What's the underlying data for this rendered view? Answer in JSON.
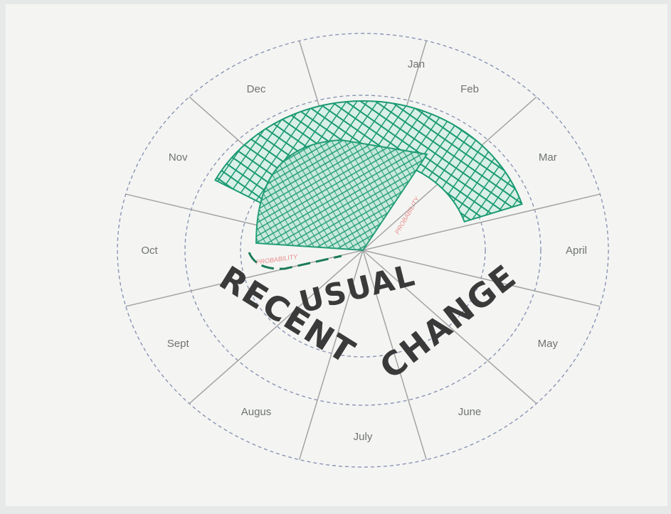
{
  "months": [
    "Jan",
    "Feb",
    "Mar",
    "April",
    "May",
    "June",
    "July",
    "Augus",
    "Sept",
    "Oct",
    "Nov",
    "Dec"
  ],
  "handwritten": {
    "usual": "USUAL",
    "recent": "RECENT",
    "change": "CHANGE"
  },
  "inner_labels": {
    "right": "PROBABILITY",
    "left": "PROBABILITY"
  },
  "colors": {
    "paper": "#f4f5f3",
    "background": "#e6e9e7",
    "ring": "#8b93b3",
    "spoke": "#a3a3a3",
    "green": "#1a9a72",
    "ink": "#3a3a3a",
    "red_label": "#e88e8e"
  }
}
